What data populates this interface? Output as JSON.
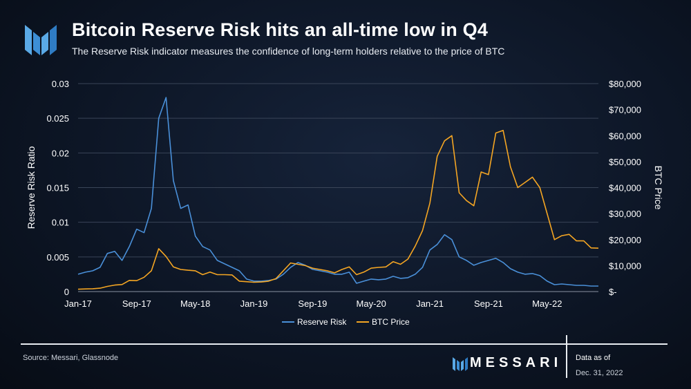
{
  "header": {
    "title": "Bitcoin Reserve Risk hits an all-time low in Q4",
    "subtitle": "The Reserve Risk indicator measures the confidence of long-term holders relative to the price of BTC"
  },
  "footer": {
    "source": "Source: Messari, Glassnode",
    "brand": "MESSARI",
    "data_as_of_label": "Data as of",
    "data_as_of_date": "Dec. 31, 2022"
  },
  "colors": {
    "reserve_risk": "#4a90d9",
    "btc_price": "#f5a623",
    "axis_text": "#ffffff",
    "grid": "#3a4558"
  },
  "chart_data": {
    "type": "line",
    "xlabel": "",
    "ylabel": "Reserve Risk Ratio",
    "y2label": "BTC Price",
    "x_ticks": [
      "Jan-17",
      "Sep-17",
      "May-18",
      "Jan-19",
      "Sep-19",
      "May-20",
      "Jan-21",
      "Sep-21",
      "May-22"
    ],
    "x_range": [
      "2017-01",
      "2022-12"
    ],
    "ylim": [
      0,
      0.03
    ],
    "y_ticks": [
      "0",
      "0.005",
      "0.01",
      "0.015",
      "0.02",
      "0.025",
      "0.03"
    ],
    "y2lim": [
      0,
      80000
    ],
    "y2_ticks": [
      "$-",
      "$10,000",
      "$20,000",
      "$30,000",
      "$40,000",
      "$50,000",
      "$60,000",
      "$70,000",
      "$80,000"
    ],
    "grid": true,
    "legend": "bottom",
    "series": [
      {
        "name": "Reserve Risk",
        "axis": "left",
        "x": [
          "2017-01",
          "2017-02",
          "2017-03",
          "2017-04",
          "2017-05",
          "2017-06",
          "2017-07",
          "2017-08",
          "2017-09",
          "2017-10",
          "2017-11",
          "2017-12",
          "2018-01",
          "2018-02",
          "2018-03",
          "2018-04",
          "2018-05",
          "2018-06",
          "2018-07",
          "2018-08",
          "2018-09",
          "2018-10",
          "2018-11",
          "2018-12",
          "2019-01",
          "2019-02",
          "2019-03",
          "2019-04",
          "2019-05",
          "2019-06",
          "2019-07",
          "2019-08",
          "2019-09",
          "2019-10",
          "2019-11",
          "2019-12",
          "2020-01",
          "2020-02",
          "2020-03",
          "2020-04",
          "2020-05",
          "2020-06",
          "2020-07",
          "2020-08",
          "2020-09",
          "2020-10",
          "2020-11",
          "2020-12",
          "2021-01",
          "2021-02",
          "2021-03",
          "2021-04",
          "2021-05",
          "2021-06",
          "2021-07",
          "2021-08",
          "2021-09",
          "2021-10",
          "2021-11",
          "2021-12",
          "2022-01",
          "2022-02",
          "2022-03",
          "2022-04",
          "2022-05",
          "2022-06",
          "2022-07",
          "2022-08",
          "2022-09",
          "2022-10",
          "2022-11",
          "2022-12"
        ],
        "values": [
          0.0025,
          0.0028,
          0.003,
          0.0035,
          0.0055,
          0.0058,
          0.0045,
          0.0065,
          0.009,
          0.0085,
          0.012,
          0.025,
          0.028,
          0.016,
          0.012,
          0.0125,
          0.008,
          0.0065,
          0.006,
          0.0045,
          0.004,
          0.0035,
          0.003,
          0.0018,
          0.0015,
          0.0015,
          0.0016,
          0.0018,
          0.0025,
          0.0035,
          0.0042,
          0.0038,
          0.0032,
          0.003,
          0.0028,
          0.0025,
          0.0025,
          0.0028,
          0.0012,
          0.0015,
          0.0018,
          0.0017,
          0.0018,
          0.0022,
          0.0019,
          0.002,
          0.0025,
          0.0035,
          0.006,
          0.0068,
          0.0082,
          0.0075,
          0.005,
          0.0045,
          0.0038,
          0.0042,
          0.0045,
          0.0048,
          0.0042,
          0.0033,
          0.0028,
          0.0025,
          0.0026,
          0.0023,
          0.0015,
          0.001,
          0.0011,
          0.001,
          0.0009,
          0.0009,
          0.0008,
          0.0008
        ]
      },
      {
        "name": "BTC Price",
        "axis": "right",
        "x": [
          "2017-01",
          "2017-02",
          "2017-03",
          "2017-04",
          "2017-05",
          "2017-06",
          "2017-07",
          "2017-08",
          "2017-09",
          "2017-10",
          "2017-11",
          "2017-12",
          "2018-01",
          "2018-02",
          "2018-03",
          "2018-04",
          "2018-05",
          "2018-06",
          "2018-07",
          "2018-08",
          "2018-09",
          "2018-10",
          "2018-11",
          "2018-12",
          "2019-01",
          "2019-02",
          "2019-03",
          "2019-04",
          "2019-05",
          "2019-06",
          "2019-07",
          "2019-08",
          "2019-09",
          "2019-10",
          "2019-11",
          "2019-12",
          "2020-01",
          "2020-02",
          "2020-03",
          "2020-04",
          "2020-05",
          "2020-06",
          "2020-07",
          "2020-08",
          "2020-09",
          "2020-10",
          "2020-11",
          "2020-12",
          "2021-01",
          "2021-02",
          "2021-03",
          "2021-04",
          "2021-05",
          "2021-06",
          "2021-07",
          "2021-08",
          "2021-09",
          "2021-10",
          "2021-11",
          "2021-12",
          "2022-01",
          "2022-02",
          "2022-03",
          "2022-04",
          "2022-05",
          "2022-06",
          "2022-07",
          "2022-08",
          "2022-09",
          "2022-10",
          "2022-11",
          "2022-12"
        ],
        "values": [
          900,
          1000,
          1100,
          1300,
          2000,
          2500,
          2700,
          4300,
          4200,
          5500,
          8000,
          16500,
          13500,
          9500,
          8500,
          8200,
          8000,
          6500,
          7500,
          6500,
          6500,
          6400,
          4000,
          3800,
          3600,
          3700,
          4000,
          5000,
          8000,
          11000,
          10500,
          10000,
          9000,
          8500,
          8000,
          7200,
          8500,
          9500,
          6500,
          7500,
          9000,
          9300,
          9500,
          11500,
          10500,
          12500,
          17500,
          23500,
          34000,
          52000,
          58000,
          60000,
          38000,
          35000,
          33000,
          46000,
          45000,
          61000,
          62000,
          48000,
          40000,
          42000,
          44000,
          40000,
          30000,
          20000,
          21500,
          22000,
          19500,
          19500,
          16800,
          16700
        ]
      }
    ]
  }
}
